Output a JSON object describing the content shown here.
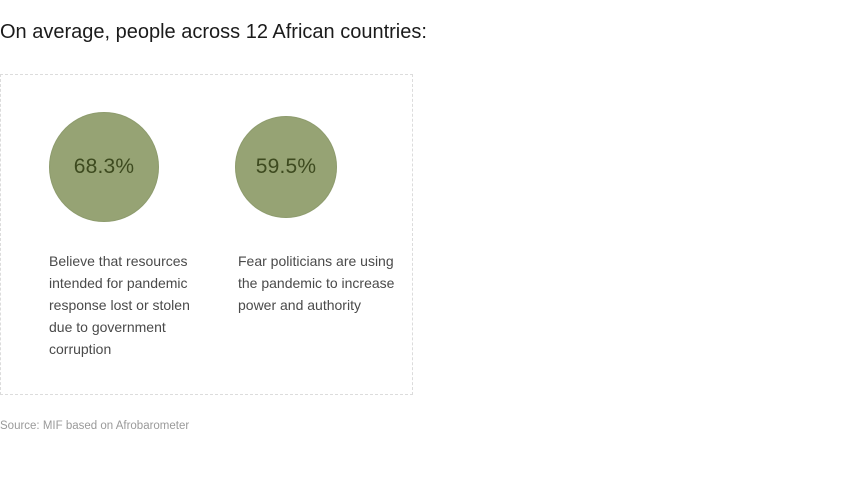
{
  "heading": "On average, people across 12 African countries:",
  "source": "Source: MIF based on Afrobarometer",
  "colors": {
    "bubble": "#96a374",
    "bubble_text": "#3d4a1f"
  },
  "chart_data": {
    "type": "bubble",
    "title": "On average, people across 12 African countries:",
    "items": [
      {
        "value": 68.3,
        "value_label": "68.3%",
        "caption": "Believe that resources intended for pandemic response lost or stolen due to government corruption"
      },
      {
        "value": 59.5,
        "value_label": "59.5%",
        "caption": "Fear politicians are using the pandemic to increase power and authority"
      }
    ]
  }
}
